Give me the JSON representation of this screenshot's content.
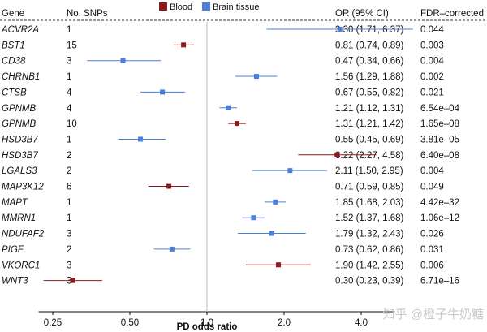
{
  "headers": {
    "gene": "Gene",
    "snps": "No. SNPs",
    "or": "OR (95% CI)",
    "fdr": "FDR–corrected P"
  },
  "legend": [
    {
      "label": "Blood",
      "color": "#8b1a1a"
    },
    {
      "label": "Brain tissue",
      "color": "#4a7fd9"
    }
  ],
  "watermark": "知乎 @橙子牛奶糖",
  "chart_data": {
    "type": "forest",
    "xlabel": "PD odds ratio",
    "x_scale": "log",
    "xlim": [
      0.22,
      5.4
    ],
    "xticks": [
      0.25,
      0.5,
      1.0,
      2.0,
      4.0
    ],
    "xtick_labels": [
      "0.25",
      "0.50",
      "1.0",
      "2.0",
      "4.0"
    ],
    "reference_line": 1.0,
    "series": [
      {
        "name": "Blood",
        "color": "#8b1a1a"
      },
      {
        "name": "Brain tissue",
        "color": "#4a7fd9"
      }
    ],
    "rows": [
      {
        "gene": "ACVR2A",
        "snps": "1",
        "tissue": "Brain tissue",
        "or": 3.3,
        "lo": 1.71,
        "hi": 6.37,
        "or_text": "3.30 (1.71, 6.37)",
        "fdr": "0.044"
      },
      {
        "gene": "BST1",
        "snps": "15",
        "tissue": "Blood",
        "or": 0.81,
        "lo": 0.74,
        "hi": 0.89,
        "or_text": "0.81 (0.74, 0.89)",
        "fdr": "0.003"
      },
      {
        "gene": "CD38",
        "snps": "3",
        "tissue": "Brain tissue",
        "or": 0.47,
        "lo": 0.34,
        "hi": 0.66,
        "or_text": "0.47 (0.34, 0.66)",
        "fdr": "0.004"
      },
      {
        "gene": "CHRNB1",
        "snps": "1",
        "tissue": "Brain tissue",
        "or": 1.56,
        "lo": 1.29,
        "hi": 1.88,
        "or_text": "1.56 (1.29, 1.88)",
        "fdr": "0.002"
      },
      {
        "gene": "CTSB",
        "snps": "4",
        "tissue": "Brain tissue",
        "or": 0.67,
        "lo": 0.55,
        "hi": 0.82,
        "or_text": "0.67 (0.55, 0.82)",
        "fdr": "0.021"
      },
      {
        "gene": "GPNMB",
        "snps": "4",
        "tissue": "Brain tissue",
        "or": 1.21,
        "lo": 1.12,
        "hi": 1.31,
        "or_text": "1.21 (1.12, 1.31)",
        "fdr": "6.54e–04"
      },
      {
        "gene": "GPNMB",
        "snps": "10",
        "tissue": "Blood",
        "or": 1.31,
        "lo": 1.21,
        "hi": 1.42,
        "or_text": "1.31 (1.21, 1.42)",
        "fdr": "1.65e–08"
      },
      {
        "gene": "HSD3B7",
        "snps": "1",
        "tissue": "Brain tissue",
        "or": 0.55,
        "lo": 0.45,
        "hi": 0.69,
        "or_text": "0.55 (0.45, 0.69)",
        "fdr": "3.81e–05"
      },
      {
        "gene": "HSD3B7",
        "snps": "2",
        "tissue": "Blood",
        "or": 3.22,
        "lo": 2.27,
        "hi": 4.58,
        "or_text": "3.22 (2.27, 4.58)",
        "fdr": "6.40e–08"
      },
      {
        "gene": "LGALS3",
        "snps": "2",
        "tissue": "Brain tissue",
        "or": 2.11,
        "lo": 1.5,
        "hi": 2.95,
        "or_text": "2.11 (1.50, 2.95)",
        "fdr": "0.004"
      },
      {
        "gene": "MAP3K12",
        "snps": "6",
        "tissue": "Blood",
        "or": 0.71,
        "lo": 0.59,
        "hi": 0.85,
        "or_text": "0.71 (0.59, 0.85)",
        "fdr": "0.049"
      },
      {
        "gene": "MAPT",
        "snps": "1",
        "tissue": "Brain tissue",
        "or": 1.85,
        "lo": 1.68,
        "hi": 2.03,
        "or_text": "1.85 (1.68, 2.03)",
        "fdr": "4.42e–32"
      },
      {
        "gene": "MMRN1",
        "snps": "1",
        "tissue": "Brain tissue",
        "or": 1.52,
        "lo": 1.37,
        "hi": 1.68,
        "or_text": "1.52 (1.37, 1.68)",
        "fdr": "1.06e–12"
      },
      {
        "gene": "NDUFAF2",
        "snps": "3",
        "tissue": "Brain tissue",
        "or": 1.79,
        "lo": 1.32,
        "hi": 2.43,
        "or_text": "1.79 (1.32, 2.43)",
        "fdr": "0.026"
      },
      {
        "gene": "PIGF",
        "snps": "2",
        "tissue": "Brain tissue",
        "or": 0.73,
        "lo": 0.62,
        "hi": 0.86,
        "or_text": "0.73 (0.62, 0.86)",
        "fdr": "0.031"
      },
      {
        "gene": "VKORC1",
        "snps": "3",
        "tissue": "Blood",
        "or": 1.9,
        "lo": 1.42,
        "hi": 2.55,
        "or_text": "1.90 (1.42, 2.55)",
        "fdr": "0.006"
      },
      {
        "gene": "WNT3",
        "snps": "3",
        "tissue": "Blood",
        "or": 0.3,
        "lo": 0.23,
        "hi": 0.39,
        "or_text": "0.30 (0.23, 0.39)",
        "fdr": "6.71e–16"
      }
    ]
  }
}
